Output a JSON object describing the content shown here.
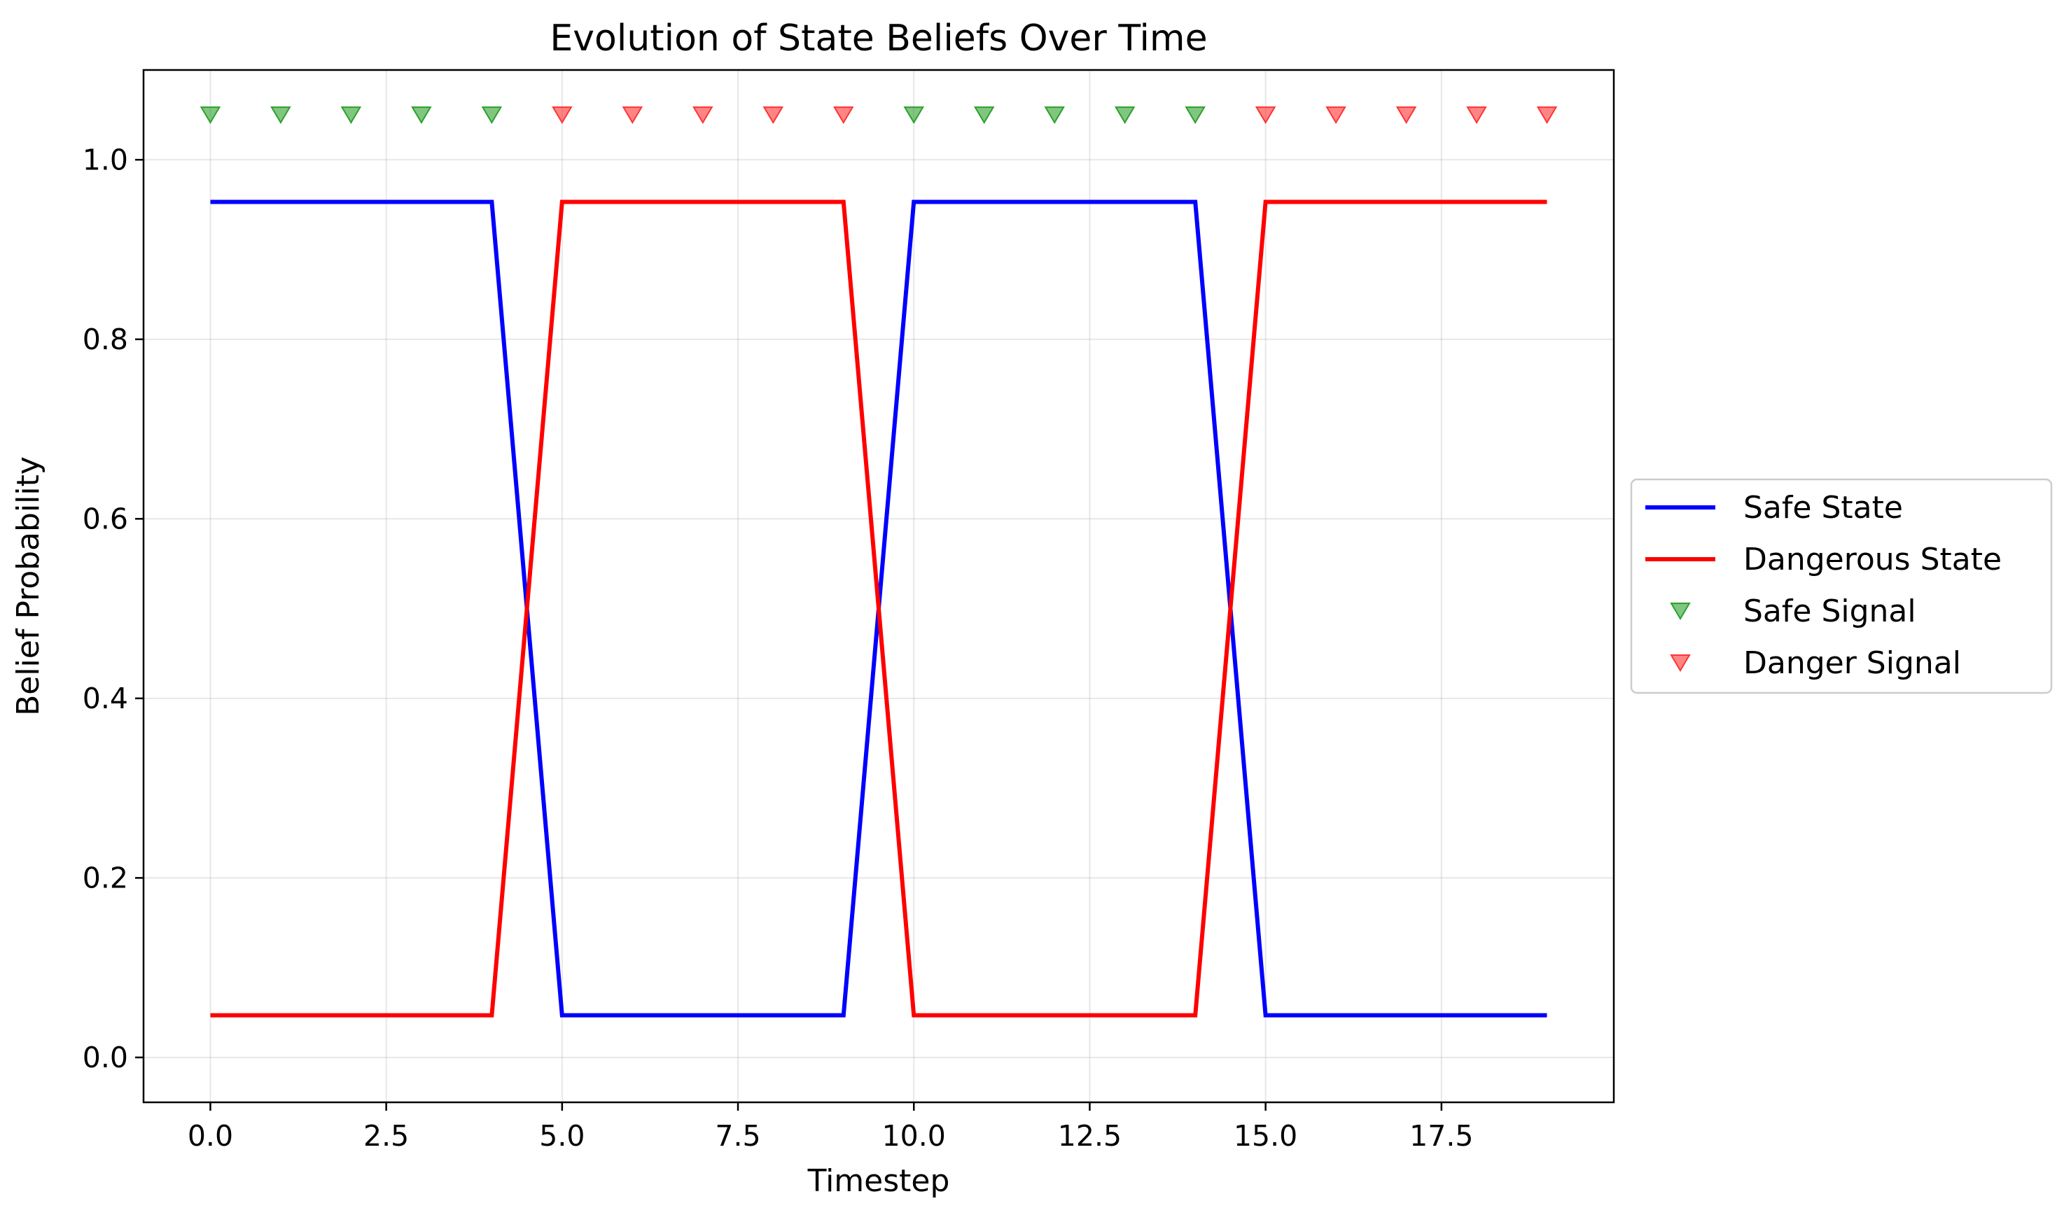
{
  "chart_data": {
    "type": "line",
    "title": "Evolution of State Beliefs Over Time",
    "xlabel": "Timestep",
    "ylabel": "Belief Probability",
    "xlim": [
      -0.95,
      19.95
    ],
    "ylim": [
      -0.05,
      1.1
    ],
    "xticks": [
      0.0,
      2.5,
      5.0,
      7.5,
      10.0,
      12.5,
      15.0,
      17.5
    ],
    "xtick_labels": [
      "0.0",
      "2.5",
      "5.0",
      "7.5",
      "10.0",
      "12.5",
      "15.0",
      "17.5"
    ],
    "yticks": [
      0.0,
      0.2,
      0.4,
      0.6,
      0.8,
      1.0
    ],
    "ytick_labels": [
      "0.0",
      "0.2",
      "0.4",
      "0.6",
      "0.8",
      "1.0"
    ],
    "grid": true,
    "legend_position": "outside-right",
    "x": [
      0,
      1,
      2,
      3,
      4,
      5,
      6,
      7,
      8,
      9,
      10,
      11,
      12,
      13,
      14,
      15,
      16,
      17,
      18,
      19
    ],
    "series": [
      {
        "name": "Safe State",
        "kind": "line",
        "color": "#0000ff",
        "values": [
          0.953,
          0.953,
          0.953,
          0.953,
          0.953,
          0.047,
          0.047,
          0.047,
          0.047,
          0.047,
          0.953,
          0.953,
          0.953,
          0.953,
          0.953,
          0.047,
          0.047,
          0.047,
          0.047,
          0.047
        ]
      },
      {
        "name": "Dangerous State",
        "kind": "line",
        "color": "#ff0000",
        "values": [
          0.047,
          0.047,
          0.047,
          0.047,
          0.047,
          0.953,
          0.953,
          0.953,
          0.953,
          0.953,
          0.047,
          0.047,
          0.047,
          0.047,
          0.047,
          0.953,
          0.953,
          0.953,
          0.953,
          0.953
        ]
      },
      {
        "name": "Safe Signal",
        "kind": "marker",
        "marker": "triangle-down",
        "color": "#2ca02c",
        "x": [
          0,
          1,
          2,
          3,
          4,
          10,
          11,
          12,
          13,
          14
        ],
        "values": [
          1.05,
          1.05,
          1.05,
          1.05,
          1.05,
          1.05,
          1.05,
          1.05,
          1.05,
          1.05
        ]
      },
      {
        "name": "Danger Signal",
        "kind": "marker",
        "marker": "triangle-down",
        "color": "#ff3333",
        "x": [
          5,
          6,
          7,
          8,
          9,
          15,
          16,
          17,
          18,
          19
        ],
        "values": [
          1.05,
          1.05,
          1.05,
          1.05,
          1.05,
          1.05,
          1.05,
          1.05,
          1.05,
          1.05
        ]
      }
    ]
  }
}
